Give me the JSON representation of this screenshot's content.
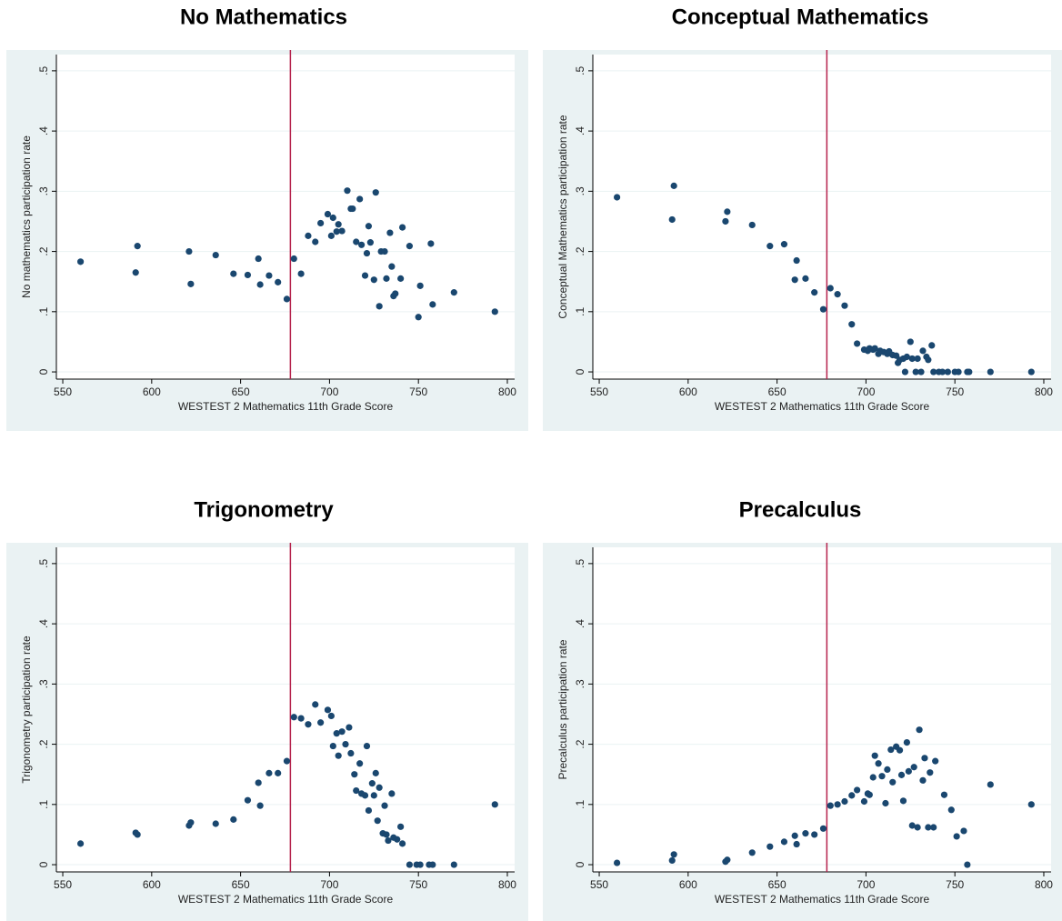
{
  "chart_data": [
    {
      "type": "scatter",
      "title": "No Mathematics",
      "xlabel": "WESTEST 2 Mathematics 11th Grade Score",
      "ylabel": "No mathematics participation rate",
      "x": [
        560,
        591,
        592,
        621,
        622,
        636,
        646,
        654,
        660,
        661,
        666,
        671,
        676,
        680,
        684,
        688,
        692,
        695,
        699,
        701,
        702,
        704,
        705,
        707,
        710,
        712,
        713,
        715,
        717,
        718,
        720,
        721,
        722,
        723,
        725,
        726,
        728,
        729,
        731,
        732,
        734,
        735,
        736,
        737,
        740,
        741,
        745,
        750,
        751,
        757,
        758,
        770,
        793
      ],
      "values": [
        0.183,
        0.165,
        0.209,
        0.2,
        0.146,
        0.194,
        0.163,
        0.161,
        0.188,
        0.145,
        0.16,
        0.149,
        0.121,
        0.188,
        0.163,
        0.226,
        0.216,
        0.247,
        0.262,
        0.226,
        0.256,
        0.233,
        0.245,
        0.234,
        0.301,
        0.271,
        0.271,
        0.216,
        0.287,
        0.211,
        0.16,
        0.197,
        0.242,
        0.215,
        0.153,
        0.298,
        0.109,
        0.2,
        0.2,
        0.155,
        0.231,
        0.175,
        0.126,
        0.13,
        0.155,
        0.24,
        0.209,
        0.091,
        0.143,
        0.213,
        0.112,
        0.132,
        0.1
      ],
      "color": "#1a476f",
      "cutoff_x": 678,
      "cutoff_color": "#b5224c",
      "xlim": [
        546.4,
        804.1
      ],
      "ylim": [
        -0.012,
        0.527
      ],
      "xticks": [
        550,
        600,
        650,
        700,
        750,
        800
      ],
      "yticks": [
        0,
        {
          "value": 0.1,
          "label": ".1"
        },
        {
          "value": 0.2,
          "label": ".2"
        },
        {
          "value": 0.3,
          "label": ".3"
        },
        {
          "value": 0.4,
          "label": ".4"
        },
        {
          "value": 0.5,
          "label": ".5"
        }
      ],
      "grid": true
    },
    {
      "type": "scatter",
      "title": "Conceptual Mathematics",
      "xlabel": "WESTEST 2 Mathematics 11th Grade Score",
      "ylabel": "Conceptual Mathematics participation rate",
      "x": [
        560,
        591,
        592,
        621,
        622,
        636,
        646,
        654,
        660,
        661,
        666,
        671,
        676,
        680,
        684,
        688,
        692,
        695,
        699,
        701,
        702,
        704,
        705,
        707,
        708,
        710,
        712,
        713,
        715,
        717,
        718,
        719,
        721,
        722,
        723,
        725,
        726,
        728,
        729,
        731,
        732,
        734,
        735,
        737,
        738,
        741,
        743,
        746,
        750,
        752,
        757,
        758,
        770,
        793
      ],
      "values": [
        0.29,
        0.253,
        0.309,
        0.25,
        0.266,
        0.244,
        0.209,
        0.212,
        0.153,
        0.185,
        0.155,
        0.132,
        0.104,
        0.139,
        0.129,
        0.11,
        0.079,
        0.047,
        0.037,
        0.035,
        0.039,
        0.037,
        0.039,
        0.03,
        0.035,
        0.033,
        0.03,
        0.034,
        0.028,
        0.027,
        0.015,
        0.02,
        0.022,
        0,
        0.025,
        0.05,
        0.022,
        0,
        0.022,
        0,
        0.035,
        0.025,
        0.02,
        0.044,
        0,
        0,
        0,
        0,
        0,
        0,
        0,
        0,
        0,
        0
      ],
      "color": "#1a476f",
      "cutoff_x": 678,
      "cutoff_color": "#b5224c",
      "xlim": [
        546.4,
        804.1
      ],
      "ylim": [
        -0.012,
        0.527
      ],
      "xticks": [
        550,
        600,
        650,
        700,
        750,
        800
      ],
      "yticks": [
        0,
        {
          "value": 0.1,
          "label": ".1"
        },
        {
          "value": 0.2,
          "label": ".2"
        },
        {
          "value": 0.3,
          "label": ".3"
        },
        {
          "value": 0.4,
          "label": ".4"
        },
        {
          "value": 0.5,
          "label": ".5"
        }
      ],
      "grid": true
    },
    {
      "type": "scatter",
      "title": "Trigonometry",
      "xlabel": "WESTEST 2 Mathematics 11th Grade Score",
      "ylabel": "Trigonometry participation rate",
      "x": [
        560,
        591,
        592,
        621,
        622,
        636,
        646,
        654,
        660,
        661,
        666,
        671,
        676,
        680,
        684,
        688,
        692,
        695,
        699,
        701,
        702,
        704,
        705,
        707,
        709,
        711,
        712,
        714,
        715,
        717,
        718,
        720,
        721,
        722,
        724,
        725,
        726,
        727,
        728,
        730,
        731,
        732,
        733,
        735,
        736,
        738,
        740,
        741,
        745,
        749,
        751,
        756,
        758,
        770,
        793
      ],
      "values": [
        0.035,
        0.053,
        0.05,
        0.065,
        0.07,
        0.068,
        0.075,
        0.107,
        0.136,
        0.098,
        0.152,
        0.152,
        0.172,
        0.245,
        0.243,
        0.233,
        0.266,
        0.236,
        0.257,
        0.247,
        0.197,
        0.218,
        0.181,
        0.221,
        0.2,
        0.228,
        0.185,
        0.15,
        0.123,
        0.168,
        0.118,
        0.115,
        0.197,
        0.09,
        0.135,
        0.115,
        0.152,
        0.073,
        0.128,
        0.052,
        0.098,
        0.05,
        0.04,
        0.118,
        0.045,
        0.042,
        0.063,
        0.035,
        0,
        0,
        0,
        0,
        0,
        0,
        0.1
      ],
      "color": "#1a476f",
      "cutoff_x": 678,
      "cutoff_color": "#b5224c",
      "xlim": [
        546.4,
        804.1
      ],
      "ylim": [
        -0.012,
        0.527
      ],
      "xticks": [
        550,
        600,
        650,
        700,
        750,
        800
      ],
      "yticks": [
        0,
        {
          "value": 0.1,
          "label": ".1"
        },
        {
          "value": 0.2,
          "label": ".2"
        },
        {
          "value": 0.3,
          "label": ".3"
        },
        {
          "value": 0.4,
          "label": ".4"
        },
        {
          "value": 0.5,
          "label": ".5"
        }
      ],
      "grid": true
    },
    {
      "type": "scatter",
      "title": "Precalculus",
      "xlabel": "WESTEST 2 Mathematics 11th Grade Score",
      "ylabel": "Precalculus participation rate",
      "x": [
        560,
        591,
        592,
        621,
        622,
        636,
        646,
        654,
        660,
        661,
        666,
        671,
        676,
        680,
        684,
        688,
        692,
        695,
        699,
        701,
        702,
        704,
        705,
        707,
        709,
        711,
        712,
        714,
        715,
        717,
        719,
        720,
        721,
        723,
        724,
        726,
        727,
        729,
        730,
        732,
        733,
        735,
        736,
        738,
        739,
        744,
        748,
        751,
        755,
        757,
        770,
        793
      ],
      "values": [
        0.003,
        0.007,
        0.017,
        0.005,
        0.008,
        0.02,
        0.03,
        0.038,
        0.048,
        0.034,
        0.052,
        0.05,
        0.06,
        0.098,
        0.1,
        0.105,
        0.115,
        0.124,
        0.105,
        0.118,
        0.116,
        0.145,
        0.181,
        0.168,
        0.147,
        0.102,
        0.158,
        0.191,
        0.137,
        0.196,
        0.19,
        0.149,
        0.106,
        0.203,
        0.155,
        0.065,
        0.162,
        0.062,
        0.224,
        0.14,
        0.177,
        0.062,
        0.153,
        0.062,
        0.172,
        0.116,
        0.091,
        0.047,
        0.056,
        0,
        0.133,
        0.1
      ],
      "color": "#1a476f",
      "cutoff_x": 678,
      "cutoff_color": "#b5224c",
      "xlim": [
        546.4,
        804.1
      ],
      "ylim": [
        -0.012,
        0.527
      ],
      "xticks": [
        550,
        600,
        650,
        700,
        750,
        800
      ],
      "yticks": [
        0,
        {
          "value": 0.1,
          "label": ".1"
        },
        {
          "value": 0.2,
          "label": ".2"
        },
        {
          "value": 0.3,
          "label": ".3"
        },
        {
          "value": 0.4,
          "label": ".4"
        },
        {
          "value": 0.5,
          "label": ".5"
        }
      ],
      "grid": true
    }
  ]
}
